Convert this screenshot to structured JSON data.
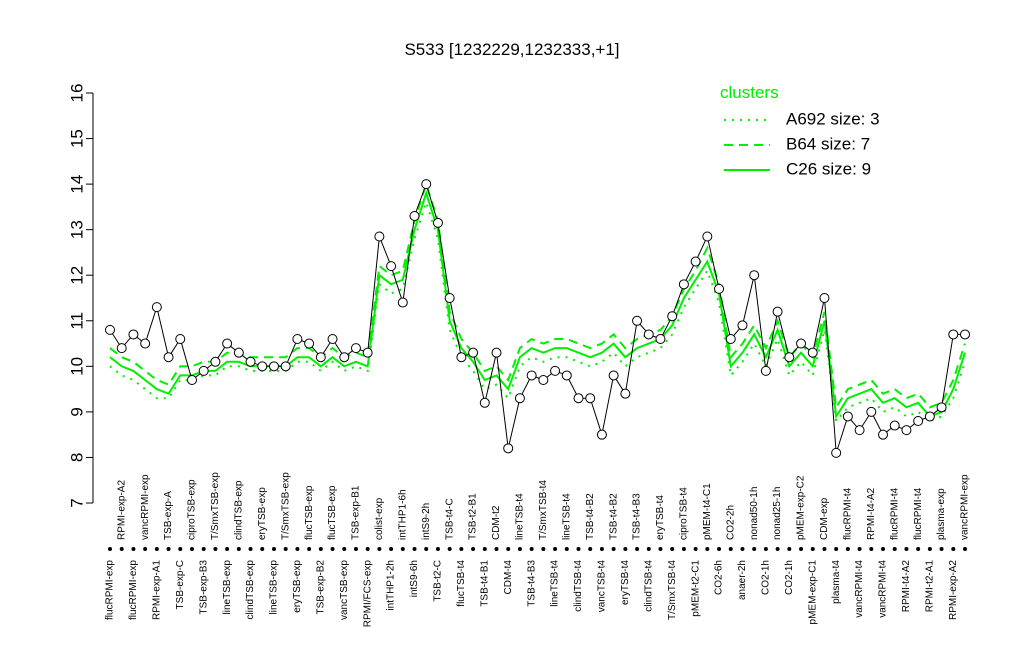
{
  "chart_data": {
    "type": "line",
    "title": "S533 [1232229,1232333,+1]",
    "categories": [
      "flucRPMI-exp",
      "RPMI-exp-A2",
      "flucRPMI-exp",
      "vancRPMI-exp",
      "RPMI-exp-A1",
      "TSB-exp-A",
      "TSB-exp-C",
      "ciproTSB-exp",
      "TSB-exp-B3",
      "T/SmxTSB-exp",
      "lineTSB-exp",
      "clindTSB-exp",
      "clindTSB-exp",
      "eryTSB-exp",
      "lineTSB-exp",
      "T/SmxTSB-exp",
      "eryTSB-exp",
      "flucTSB-exp",
      "TSB-exp-B2",
      "flucTSB-exp",
      "vancTSB-exp",
      "TSB-exp-B1",
      "RPMI/FCS-exp",
      "colist-exp",
      "intTHP1-2h",
      "intTHP1-6h",
      "intS9-6h",
      "intS9-2h",
      "TSB-t2-C",
      "TSB-t4-C",
      "flucTSB-t4",
      "TSB-t2-B1",
      "TSB-t4-B1",
      "CDM-t2",
      "CDM-t4",
      "lineTSB-t4",
      "TSB-t4-B3",
      "T/SmxTSB-t4",
      "lineTSB-t4",
      "lineTSB-t4",
      "clindTSB-t4",
      "TSB-t4-B2",
      "vancTSB-t4",
      "TSB-t4-B2",
      "eryTSB-t4",
      "TSB-t4-B3",
      "clindTSB-t4",
      "eryTSB-t4",
      "T/SmxTSB-t4",
      "ciproTSB-t4",
      "pMEM-t2-C1",
      "pMEM-t4-C1",
      "CO2-6h",
      "CO2-2h",
      "anaer-2h",
      "nonad50-1h",
      "CO2-1h",
      "nonad25-1h",
      "CO2-1h",
      "pMEM-exp-C2",
      "pMEM-exp-C1",
      "CDM-exp",
      "plasma-t4",
      "flucRPMI-t4",
      "vancRPMI-t4",
      "RPMI-t4-A2",
      "vancRPMI-t4",
      "flucRPMI-t4",
      "RPMI-t4-A2",
      "flucRPMI-t4",
      "RPMI-t2-A1",
      "plasma-exp",
      "RPMI-exp-A2",
      "vancRPMI-exp"
    ],
    "values": [
      10.8,
      10.4,
      10.7,
      10.5,
      11.3,
      10.2,
      10.6,
      9.7,
      9.9,
      10.1,
      10.5,
      10.3,
      10.1,
      10.0,
      10.0,
      10.0,
      10.6,
      10.5,
      10.2,
      10.6,
      10.2,
      10.4,
      10.3,
      12.85,
      12.2,
      11.4,
      13.3,
      14.0,
      13.15,
      11.5,
      10.2,
      10.3,
      9.2,
      10.3,
      8.2,
      9.3,
      9.8,
      9.7,
      9.9,
      9.8,
      9.3,
      9.3,
      8.5,
      9.8,
      9.4,
      11.0,
      10.7,
      10.6,
      11.1,
      11.8,
      12.3,
      12.85,
      11.7,
      10.6,
      10.9,
      12.0,
      9.9,
      11.2,
      10.2,
      10.5,
      10.3,
      11.5,
      8.1,
      8.9,
      8.6,
      9.0,
      8.5,
      8.7,
      8.6,
      8.8,
      8.9,
      9.1,
      10.7,
      10.7
    ],
    "color": "#000000",
    "series": [
      {
        "name": "A692 size: 3",
        "color": "#00ee00",
        "dash": "dotted",
        "values": [
          10.0,
          9.8,
          9.7,
          9.5,
          9.3,
          9.3,
          9.7,
          9.7,
          9.8,
          9.8,
          10.0,
          10.0,
          9.9,
          9.9,
          9.9,
          9.9,
          10.1,
          10.1,
          9.9,
          10.1,
          9.9,
          10.0,
          9.9,
          11.8,
          11.6,
          11.7,
          12.8,
          13.6,
          12.8,
          10.8,
          10.2,
          9.9,
          9.5,
          9.6,
          9.3,
          10.0,
          10.2,
          10.1,
          10.2,
          10.2,
          10.1,
          10.0,
          10.1,
          10.3,
          10.0,
          10.2,
          10.3,
          10.4,
          10.7,
          11.3,
          11.7,
          12.1,
          11.4,
          9.8,
          10.1,
          10.5,
          10.0,
          10.6,
          9.8,
          10.1,
          9.8,
          10.8,
          8.8,
          9.1,
          9.2,
          9.3,
          9.0,
          9.1,
          8.9,
          9.0,
          8.8,
          8.9,
          9.3,
          10.1
        ]
      },
      {
        "name": "B64 size: 7",
        "color": "#00ee00",
        "dash": "dashed",
        "values": [
          10.4,
          10.2,
          10.1,
          9.9,
          9.7,
          9.6,
          10.0,
          10.0,
          10.1,
          10.1,
          10.3,
          10.3,
          10.2,
          10.2,
          10.2,
          10.2,
          10.4,
          10.4,
          10.2,
          10.4,
          10.2,
          10.3,
          10.2,
          12.2,
          12.0,
          12.1,
          13.2,
          14.0,
          13.2,
          11.2,
          10.6,
          10.3,
          9.9,
          10.0,
          9.7,
          10.4,
          10.6,
          10.5,
          10.6,
          10.6,
          10.5,
          10.4,
          10.5,
          10.7,
          10.4,
          10.6,
          10.7,
          10.8,
          11.1,
          11.7,
          12.1,
          12.6,
          11.8,
          10.2,
          10.5,
          10.9,
          10.4,
          11.0,
          10.2,
          10.5,
          10.2,
          11.2,
          9.1,
          9.5,
          9.6,
          9.7,
          9.4,
          9.5,
          9.3,
          9.4,
          9.1,
          9.2,
          9.7,
          10.5
        ]
      },
      {
        "name": "C26 size: 9",
        "color": "#00ee00",
        "dash": "solid",
        "values": [
          10.2,
          10.0,
          9.9,
          9.7,
          9.5,
          9.4,
          9.8,
          9.8,
          9.9,
          9.9,
          10.1,
          10.1,
          10.0,
          10.0,
          10.0,
          10.0,
          10.2,
          10.2,
          10.0,
          10.2,
          10.0,
          10.1,
          10.0,
          12.0,
          11.8,
          11.9,
          13.0,
          13.8,
          13.0,
          11.0,
          10.4,
          10.1,
          9.7,
          9.8,
          9.5,
          10.2,
          10.4,
          10.3,
          10.4,
          10.4,
          10.3,
          10.2,
          10.3,
          10.5,
          10.2,
          10.4,
          10.5,
          10.6,
          10.9,
          11.5,
          11.9,
          12.3,
          11.6,
          10.0,
          10.3,
          10.7,
          10.2,
          10.8,
          10.0,
          10.3,
          10.0,
          11.0,
          8.9,
          9.3,
          9.4,
          9.5,
          9.2,
          9.3,
          9.1,
          9.2,
          8.9,
          9.0,
          9.5,
          10.3
        ]
      }
    ],
    "legend_title": "clusters",
    "ylim": [
      7,
      16
    ],
    "yticks": [
      7,
      8,
      9,
      10,
      11,
      12,
      13,
      14,
      15,
      16
    ],
    "legend": "top-right"
  }
}
